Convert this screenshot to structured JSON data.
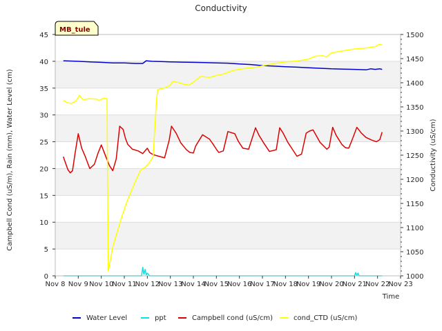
{
  "chart_data": {
    "type": "line",
    "title": "Conductivity",
    "site_label": "MB_tule",
    "xlabel": "Time",
    "ylabel_left": "Campbell Cond (uS/m), Rain (mm), Water Level (cm)",
    "ylabel_right": "Conductivity (uS/cm)",
    "x_range": [
      8,
      23
    ],
    "x_ticks": [
      8,
      9,
      10,
      11,
      12,
      13,
      14,
      15,
      16,
      17,
      18,
      19,
      20,
      21,
      22,
      23
    ],
    "x_tick_labels": [
      "Nov 8",
      "Nov 9",
      "Nov 10",
      "Nov 11",
      "Nov 12",
      "Nov 13",
      "Nov 14",
      "Nov 15",
      "Nov 16",
      "Nov 17",
      "Nov 18",
      "Nov 19",
      "Nov 20",
      "Nov 21",
      "Nov 22",
      "Nov 23"
    ],
    "ylim_left": [
      0,
      45
    ],
    "y_ticks_left": [
      0,
      5,
      10,
      15,
      20,
      25,
      30,
      35,
      40,
      45
    ],
    "ylim_right": [
      1000,
      1500
    ],
    "y_ticks_right": [
      1000,
      1050,
      1100,
      1150,
      1200,
      1250,
      1300,
      1350,
      1400,
      1450,
      1500
    ],
    "band_color": "#f2f2f2",
    "series": [
      {
        "name": "Water Level",
        "color": "#0000cc",
        "axis": "left",
        "x": [
          8.35,
          9.0,
          9.5,
          10.0,
          10.5,
          11.0,
          11.5,
          11.8,
          11.95,
          12.2,
          12.6,
          13.0,
          13.5,
          14.0,
          14.5,
          15.0,
          15.5,
          16.0,
          16.5,
          17.0,
          17.5,
          18.0,
          18.5,
          19.0,
          19.5,
          20.0,
          20.5,
          21.0,
          21.5,
          21.7,
          21.9,
          22.1,
          22.2
        ],
        "values": [
          40.1,
          40.0,
          39.9,
          39.8,
          39.7,
          39.7,
          39.6,
          39.6,
          40.1,
          40.0,
          39.95,
          39.9,
          39.85,
          39.8,
          39.75,
          39.7,
          39.65,
          39.5,
          39.4,
          39.2,
          39.1,
          39.0,
          38.9,
          38.8,
          38.7,
          38.6,
          38.55,
          38.5,
          38.4,
          38.6,
          38.5,
          38.6,
          38.5
        ]
      },
      {
        "name": "ppt",
        "color": "#00e5e5",
        "axis": "left",
        "x": [
          8.35,
          11.75,
          11.8,
          11.85,
          11.9,
          11.95,
          12.0,
          12.1,
          21.0,
          21.05,
          21.1,
          21.15,
          21.2,
          22.2
        ],
        "values": [
          0,
          0,
          1.6,
          0.3,
          1.2,
          0.2,
          0.5,
          0,
          0,
          0.6,
          0.1,
          0.5,
          0,
          0
        ]
      },
      {
        "name": "Campbell cond (uS/cm)",
        "color": "#dd0000",
        "axis": "left",
        "x": [
          8.35,
          8.45,
          8.55,
          8.65,
          8.75,
          8.85,
          9.0,
          9.15,
          9.3,
          9.5,
          9.7,
          9.85,
          10.0,
          10.2,
          10.35,
          10.5,
          10.65,
          10.8,
          10.95,
          11.05,
          11.15,
          11.35,
          11.6,
          11.8,
          12.0,
          12.1,
          12.25,
          12.5,
          12.75,
          12.95,
          13.05,
          13.25,
          13.45,
          13.7,
          13.85,
          14.0,
          14.1,
          14.4,
          14.7,
          14.85,
          15.0,
          15.1,
          15.3,
          15.5,
          15.8,
          15.95,
          16.15,
          16.4,
          16.7,
          16.85,
          17.05,
          17.3,
          17.6,
          17.75,
          17.9,
          18.1,
          18.3,
          18.5,
          18.7,
          18.9,
          19.05,
          19.2,
          19.5,
          19.8,
          19.9,
          20.05,
          20.2,
          20.45,
          20.6,
          20.75,
          20.9,
          21.1,
          21.3,
          21.5,
          21.75,
          21.95,
          22.1,
          22.2
        ],
        "values": [
          22.2,
          21.0,
          19.8,
          19.2,
          19.6,
          22.5,
          26.5,
          23.8,
          22.3,
          20.0,
          20.8,
          22.8,
          24.4,
          22.2,
          20.6,
          19.6,
          21.8,
          27.9,
          27.3,
          25.6,
          24.5,
          23.6,
          23.3,
          22.8,
          23.8,
          23.0,
          22.6,
          22.3,
          22.0,
          25.3,
          27.9,
          26.6,
          24.8,
          23.5,
          23.0,
          22.9,
          24.2,
          26.3,
          25.5,
          24.6,
          23.6,
          23.0,
          23.3,
          26.9,
          26.5,
          25.1,
          23.8,
          23.6,
          27.6,
          26.2,
          24.8,
          23.2,
          23.5,
          27.6,
          26.6,
          24.9,
          23.6,
          22.3,
          22.7,
          26.6,
          27.0,
          27.2,
          24.9,
          23.6,
          24.0,
          27.7,
          26.2,
          24.5,
          23.9,
          23.8,
          25.4,
          27.7,
          26.6,
          25.8,
          25.3,
          25.0,
          25.4,
          26.8
        ]
      },
      {
        "name": "cond_CTD (uS/cm)",
        "color": "#ffff00",
        "axis": "right",
        "x": [
          8.35,
          8.5,
          8.7,
          8.9,
          9.05,
          9.2,
          9.5,
          9.8,
          9.9,
          10.1,
          10.25,
          10.3,
          10.35,
          10.5,
          10.7,
          10.9,
          11.1,
          11.3,
          11.5,
          11.7,
          11.9,
          12.1,
          12.25,
          12.4,
          12.45,
          12.55,
          12.8,
          13.0,
          13.1,
          13.3,
          13.6,
          13.8,
          14.0,
          14.3,
          14.7,
          15.0,
          15.3,
          15.7,
          16.0,
          16.3,
          16.7,
          17.0,
          17.5,
          18.0,
          18.5,
          19.0,
          19.3,
          19.6,
          19.8,
          20.0,
          20.5,
          21.0,
          21.5,
          21.9,
          22.1,
          22.2
        ],
        "values": [
          1364,
          1359,
          1357,
          1362,
          1374,
          1365,
          1367,
          1366,
          1363,
          1368,
          1367,
          1010,
          1020,
          1060,
          1092,
          1124,
          1152,
          1175,
          1198,
          1218,
          1225,
          1235,
          1247,
          1365,
          1385,
          1387,
          1390,
          1395,
          1403,
          1401,
          1397,
          1395,
          1401,
          1413,
          1411,
          1415,
          1418,
          1425,
          1428,
          1430,
          1432,
          1435,
          1440,
          1443,
          1445,
          1449,
          1455,
          1456,
          1454,
          1462,
          1466,
          1470,
          1472,
          1475,
          1480,
          1478
        ]
      }
    ],
    "legend_position": "bottom"
  }
}
